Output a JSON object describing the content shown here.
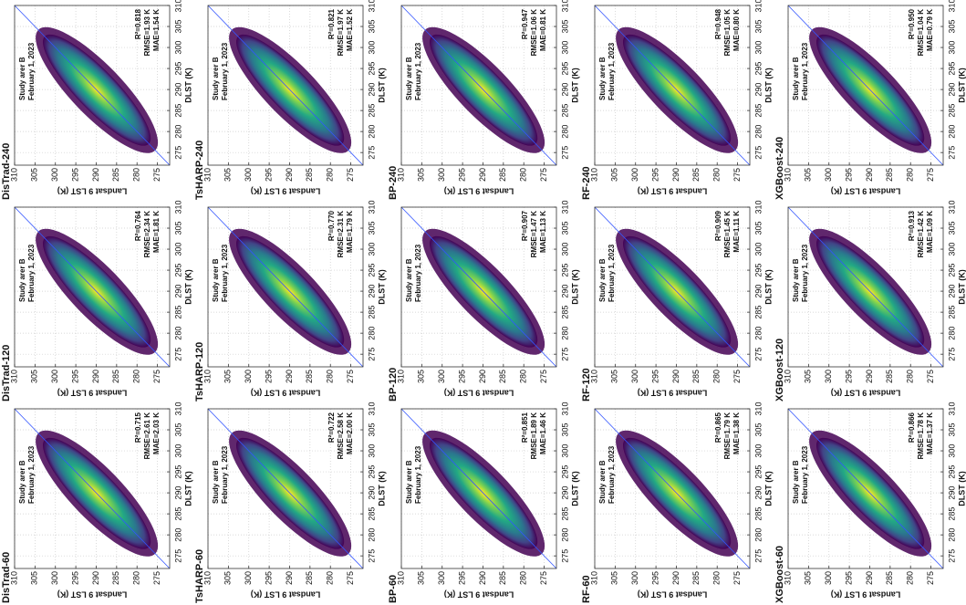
{
  "chart_data": [
    {
      "type": "density-scatter",
      "title": "DisTrad-240",
      "xlabel": "DLST (K)",
      "ylabel": "Landsat 9 LST (K)",
      "annotations": [
        "Study arer B",
        "February 1, 2023"
      ],
      "stats": [
        "R²=0.818",
        "RMSE=1.93 K",
        "MAE=1.54 K"
      ],
      "xlim": [
        272,
        310
      ],
      "ylim": [
        272,
        310
      ],
      "xticks": [
        275,
        280,
        285,
        290,
        295,
        300,
        305,
        310
      ],
      "yticks": [
        275,
        280,
        285,
        290,
        295,
        300,
        305,
        310
      ],
      "grid": true
    },
    {
      "type": "density-scatter",
      "title": "TsHARP-240",
      "xlabel": "DLST (K)",
      "ylabel": "Landsat 9 LST (K)",
      "annotations": [
        "Study arer B",
        "February 1, 2023"
      ],
      "stats": [
        "R²=0.821",
        "RMSE=1.97 K",
        "MAE=1.52 K"
      ],
      "xlim": [
        272,
        310
      ],
      "ylim": [
        272,
        310
      ],
      "xticks": [
        275,
        280,
        285,
        290,
        295,
        300,
        305,
        310
      ],
      "yticks": [
        275,
        280,
        285,
        290,
        295,
        300,
        305,
        310
      ],
      "grid": true
    },
    {
      "type": "density-scatter",
      "title": "BP-240",
      "xlabel": "DLST (K)",
      "ylabel": "Landsat 9 LST (K)",
      "annotations": [
        "Study arer B",
        "February 1, 2023"
      ],
      "stats": [
        "R²=0.947",
        "RMSE=1.06 K",
        "MAE=0.81 K"
      ],
      "xlim": [
        272,
        310
      ],
      "ylim": [
        272,
        310
      ],
      "xticks": [
        275,
        280,
        285,
        290,
        295,
        300,
        305,
        310
      ],
      "yticks": [
        275,
        280,
        285,
        290,
        295,
        300,
        305,
        310
      ],
      "grid": true
    },
    {
      "type": "density-scatter",
      "title": "RF-240",
      "xlabel": "DLST (K)",
      "ylabel": "Landsat 9 LST (K)",
      "annotations": [
        "Study arer B",
        "February 1, 2023"
      ],
      "stats": [
        "R²=0.948",
        "RMSE=1.05 K",
        "MAE=0.80 K"
      ],
      "xlim": [
        272,
        310
      ],
      "ylim": [
        272,
        310
      ],
      "xticks": [
        275,
        280,
        285,
        290,
        295,
        300,
        305,
        310
      ],
      "yticks": [
        275,
        280,
        285,
        290,
        295,
        300,
        305,
        310
      ],
      "grid": true
    },
    {
      "type": "density-scatter",
      "title": "XGBoost-240",
      "xlabel": "DLST (K)",
      "ylabel": "Landsat 9 LST (K)",
      "annotations": [
        "Study arer B",
        "February 1, 2023"
      ],
      "stats": [
        "R²=0.950",
        "RMSE=1.04 K",
        "MAE=0.79 K"
      ],
      "xlim": [
        272,
        310
      ],
      "ylim": [
        272,
        310
      ],
      "xticks": [
        275,
        280,
        285,
        290,
        295,
        300,
        305,
        310
      ],
      "yticks": [
        275,
        280,
        285,
        290,
        295,
        300,
        305,
        310
      ],
      "grid": true
    },
    {
      "type": "density-scatter",
      "title": "DisTrad-120",
      "xlabel": "DLST (K)",
      "ylabel": "Landsat 9 LST (K)",
      "annotations": [
        "Study arer B",
        "February 1, 2023"
      ],
      "stats": [
        "R²=0.764",
        "RMSE=2.34 K",
        "MAE=1.81 K"
      ],
      "xlim": [
        272,
        310
      ],
      "ylim": [
        272,
        310
      ],
      "xticks": [
        275,
        280,
        285,
        290,
        295,
        300,
        305,
        310
      ],
      "yticks": [
        275,
        280,
        285,
        290,
        295,
        300,
        305,
        310
      ],
      "grid": true
    },
    {
      "type": "density-scatter",
      "title": "TsHARP-120",
      "xlabel": "DLST (K)",
      "ylabel": "Landsat 9 LST (K)",
      "annotations": [
        "Study arer B",
        "February 1, 2023"
      ],
      "stats": [
        "R²=0.770",
        "RMSE=2.31 K",
        "MAE=1.79 K"
      ],
      "xlim": [
        272,
        310
      ],
      "ylim": [
        272,
        310
      ],
      "xticks": [
        275,
        280,
        285,
        290,
        295,
        300,
        305,
        310
      ],
      "yticks": [
        275,
        280,
        285,
        290,
        295,
        300,
        305,
        310
      ],
      "grid": true
    },
    {
      "type": "density-scatter",
      "title": "BP-120",
      "xlabel": "DLST (K)",
      "ylabel": "Landsat 9 LST (K)",
      "annotations": [
        "Study arer B",
        "February 1, 2023"
      ],
      "stats": [
        "R²=0.907",
        "RMSE=1.47 K",
        "MAE=1.13 K"
      ],
      "xlim": [
        272,
        310
      ],
      "ylim": [
        272,
        310
      ],
      "xticks": [
        275,
        280,
        285,
        290,
        295,
        300,
        305,
        310
      ],
      "yticks": [
        275,
        280,
        285,
        290,
        295,
        300,
        305,
        310
      ],
      "grid": true
    },
    {
      "type": "density-scatter",
      "title": "RF-120",
      "xlabel": "DLST (K)",
      "ylabel": "Landsat 9 LST (K)",
      "annotations": [
        "Study arer B",
        "February 1, 2023"
      ],
      "stats": [
        "R²=0.909",
        "RMSE=1.45 K",
        "MAE=1.11 K"
      ],
      "xlim": [
        272,
        310
      ],
      "ylim": [
        272,
        310
      ],
      "xticks": [
        275,
        280,
        285,
        290,
        295,
        300,
        305,
        310
      ],
      "yticks": [
        275,
        280,
        285,
        290,
        295,
        300,
        305,
        310
      ],
      "grid": true
    },
    {
      "type": "density-scatter",
      "title": "XGBoost-120",
      "xlabel": "DLST (K)",
      "ylabel": "Landsat 9 LST (K)",
      "annotations": [
        "Study arer B",
        "February 1, 2023"
      ],
      "stats": [
        "R²=0.913",
        "RMSE=1.42 K",
        "MAE=1.09 K"
      ],
      "xlim": [
        272,
        310
      ],
      "ylim": [
        272,
        310
      ],
      "xticks": [
        275,
        280,
        285,
        290,
        295,
        300,
        305,
        310
      ],
      "yticks": [
        275,
        280,
        285,
        290,
        295,
        300,
        305,
        310
      ],
      "grid": true
    },
    {
      "type": "density-scatter",
      "title": "DisTrad-60",
      "xlabel": "DLST (K)",
      "ylabel": "Landsat 9 LST (K)",
      "annotations": [
        "Study arer B",
        "February 1, 2023"
      ],
      "stats": [
        "R²=0.715",
        "RMSE=2.61 K",
        "MAE=2.03 K"
      ],
      "xlim": [
        272,
        310
      ],
      "ylim": [
        272,
        310
      ],
      "xticks": [
        275,
        280,
        285,
        290,
        295,
        300,
        305,
        310
      ],
      "yticks": [
        275,
        280,
        285,
        290,
        295,
        300,
        305,
        310
      ],
      "grid": true
    },
    {
      "type": "density-scatter",
      "title": "TsHARP-60",
      "xlabel": "DLST (K)",
      "ylabel": "Landsat 9 LST (K)",
      "annotations": [
        "Study arer B",
        "February 1, 2023"
      ],
      "stats": [
        "R²=0.722",
        "RMSE=2.58 K",
        "MAE=2.00 K"
      ],
      "xlim": [
        272,
        310
      ],
      "ylim": [
        272,
        310
      ],
      "xticks": [
        275,
        280,
        285,
        290,
        295,
        300,
        305,
        310
      ],
      "yticks": [
        275,
        280,
        285,
        290,
        295,
        300,
        305,
        310
      ],
      "grid": true
    },
    {
      "type": "density-scatter",
      "title": "BP-60",
      "xlabel": "DLST (K)",
      "ylabel": "Landsat 9 LST (K)",
      "annotations": [
        "Study arer B",
        "February 1, 2023"
      ],
      "stats": [
        "R²=0.851",
        "RMSE=1.89 K",
        "MAE=1.46 K"
      ],
      "xlim": [
        272,
        310
      ],
      "ylim": [
        272,
        310
      ],
      "xticks": [
        275,
        280,
        285,
        290,
        295,
        300,
        305,
        310
      ],
      "yticks": [
        275,
        280,
        285,
        290,
        295,
        300,
        305,
        310
      ],
      "grid": true
    },
    {
      "type": "density-scatter",
      "title": "RF-60",
      "xlabel": "DLST (K)",
      "ylabel": "Landsat 9 LST (K)",
      "annotations": [
        "Study arer B",
        "February 1, 2023"
      ],
      "stats": [
        "R²=0.865",
        "RMSE=1.79 K",
        "MAE=1.38 K"
      ],
      "xlim": [
        272,
        310
      ],
      "ylim": [
        272,
        310
      ],
      "xticks": [
        275,
        280,
        285,
        290,
        295,
        300,
        305,
        310
      ],
      "yticks": [
        275,
        280,
        285,
        290,
        295,
        300,
        305,
        310
      ],
      "grid": true
    },
    {
      "type": "density-scatter",
      "title": "XGBoost-60",
      "xlabel": "DLST (K)",
      "ylabel": "Landsat 9 LST (K)",
      "annotations": [
        "Study arer B",
        "February 1, 2023"
      ],
      "stats": [
        "R²=0.866",
        "RMSE=1.78 K",
        "MAE=1.37 K"
      ],
      "xlim": [
        272,
        310
      ],
      "ylim": [
        272,
        310
      ],
      "xticks": [
        275,
        280,
        285,
        290,
        295,
        300,
        305,
        310
      ],
      "yticks": [
        275,
        280,
        285,
        290,
        295,
        300,
        305,
        310
      ],
      "grid": true
    }
  ]
}
